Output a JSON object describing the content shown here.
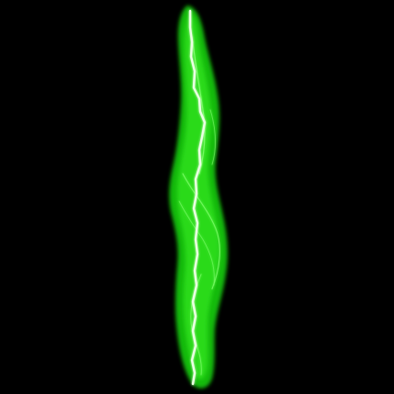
{
  "scene": {
    "subject": "lightning-bolt",
    "colors": {
      "background": "#000000",
      "glow": "#19c40f",
      "glow_inner": "#2fe01f",
      "core": "#e8ffe0",
      "filament": "#7dff6a"
    }
  }
}
